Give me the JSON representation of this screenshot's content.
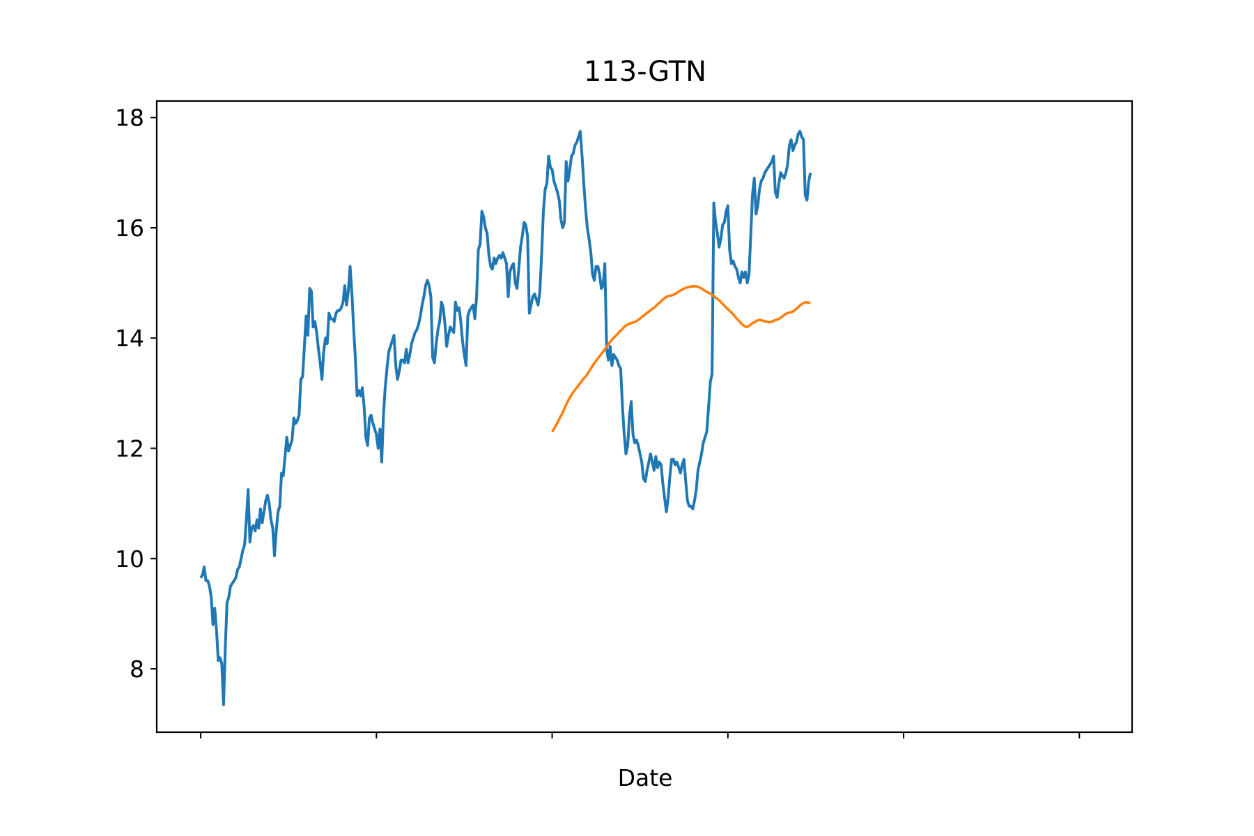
{
  "chart_data": {
    "type": "line",
    "title": "113-GTN",
    "xlabel": "Date",
    "ylabel": "",
    "ylim": [
      6.85,
      18.3
    ],
    "xlim": [
      -25,
      530
    ],
    "grid": false,
    "legend": "none",
    "x_tick_labels": [
      "",
      "",
      "",
      "",
      "",
      ""
    ],
    "y_ticks": [
      8,
      10,
      12,
      14,
      16,
      18
    ],
    "y_tick_labels": [
      "8",
      "10",
      "12",
      "14",
      "16",
      "18"
    ],
    "series": [
      {
        "color": "#1f77b4",
        "values": [
          9.65,
          9.7,
          9.85,
          9.6,
          9.6,
          9.5,
          9.3,
          8.8,
          9.1,
          8.7,
          8.15,
          8.2,
          8.1,
          7.35,
          8.4,
          9.2,
          9.3,
          9.5,
          9.55,
          9.6,
          9.65,
          9.8,
          9.85,
          10.0,
          10.15,
          10.25,
          10.7,
          11.25,
          10.3,
          10.55,
          10.6,
          10.5,
          10.7,
          10.55,
          10.9,
          10.65,
          10.85,
          11.05,
          11.15,
          11.0,
          10.7,
          10.55,
          10.05,
          10.5,
          10.85,
          10.95,
          11.55,
          11.5,
          11.85,
          12.2,
          11.95,
          12.05,
          12.15,
          12.55,
          12.45,
          12.5,
          12.6,
          13.25,
          13.3,
          13.85,
          14.4,
          14.05,
          14.9,
          14.85,
          14.2,
          14.3,
          14.1,
          13.8,
          13.55,
          13.25,
          13.75,
          14.0,
          13.9,
          14.45,
          14.35,
          14.35,
          14.3,
          14.45,
          14.5,
          14.5,
          14.55,
          14.65,
          14.95,
          14.6,
          14.85,
          15.3,
          14.85,
          14.2,
          13.65,
          12.95,
          13.05,
          12.95,
          13.1,
          12.75,
          12.2,
          12.05,
          12.55,
          12.6,
          12.45,
          12.35,
          12.25,
          12.0,
          12.35,
          11.75,
          12.6,
          13.1,
          13.45,
          13.75,
          13.85,
          13.95,
          14.05,
          13.5,
          13.25,
          13.4,
          13.6,
          13.6,
          13.55,
          13.8,
          13.55,
          13.7,
          13.9,
          14.0,
          14.1,
          14.15,
          14.25,
          14.4,
          14.6,
          14.75,
          14.95,
          15.05,
          14.95,
          14.75,
          13.65,
          13.55,
          13.9,
          14.15,
          14.3,
          14.65,
          14.55,
          14.25,
          13.85,
          14.05,
          14.2,
          14.15,
          14.1,
          14.65,
          14.5,
          14.55,
          14.3,
          13.95,
          13.7,
          13.5,
          14.4,
          14.5,
          14.55,
          14.6,
          14.35,
          14.75,
          15.6,
          15.7,
          16.3,
          16.2,
          16.0,
          15.9,
          15.5,
          15.3,
          15.25,
          15.45,
          15.35,
          15.45,
          15.5,
          15.45,
          15.55,
          15.45,
          15.35,
          14.75,
          15.2,
          15.3,
          15.35,
          15.0,
          14.9,
          15.25,
          15.65,
          15.85,
          16.1,
          16.05,
          15.85,
          14.45,
          14.6,
          14.75,
          14.8,
          14.7,
          14.6,
          14.85,
          15.5,
          16.3,
          16.7,
          16.8,
          17.3,
          17.1,
          17.05,
          16.85,
          16.75,
          16.65,
          16.5,
          16.15,
          16.0,
          16.1,
          17.2,
          16.85,
          17.05,
          17.3,
          17.35,
          17.5,
          17.55,
          17.65,
          17.75,
          17.3,
          16.8,
          16.35,
          16.0,
          15.8,
          15.55,
          15.15,
          15.05,
          15.3,
          15.3,
          15.15,
          14.9,
          14.95,
          15.35,
          13.8,
          13.6,
          13.85,
          13.5,
          13.7,
          13.65,
          13.6,
          13.5,
          13.45,
          12.75,
          12.25,
          11.9,
          12.05,
          12.6,
          12.85,
          12.25,
          12.1,
          12.15,
          12.05,
          11.9,
          11.75,
          11.45,
          11.4,
          11.6,
          11.75,
          11.9,
          11.75,
          11.6,
          11.85,
          11.65,
          11.75,
          11.7,
          11.35,
          11.1,
          10.85,
          11.1,
          11.5,
          11.8,
          11.8,
          11.7,
          11.75,
          11.65,
          11.55,
          11.7,
          11.8,
          11.4,
          11.05,
          10.95,
          10.95,
          10.9,
          11.05,
          11.25,
          11.6,
          11.75,
          11.9,
          12.1,
          12.2,
          12.3,
          12.75,
          13.2,
          13.35,
          16.45,
          16.1,
          15.9,
          15.65,
          15.8,
          16.05,
          16.1,
          16.3,
          16.4,
          15.6,
          15.35,
          15.4,
          15.3,
          15.25,
          15.1,
          15.0,
          15.2,
          15.1,
          15.2,
          15.0,
          15.15,
          15.85,
          16.6,
          16.9,
          16.25,
          16.4,
          16.7,
          16.85,
          16.9,
          17.0,
          17.05,
          17.1,
          17.15,
          17.2,
          17.3,
          16.65,
          16.55,
          16.8,
          17.0,
          16.95,
          16.9,
          17.0,
          17.15,
          17.5,
          17.6,
          17.4,
          17.5,
          17.55,
          17.7,
          17.75,
          17.65,
          17.6,
          16.6,
          16.5,
          16.85,
          17.0
        ]
      },
      {
        "color": "#ff7f0e",
        "values": [
          12.3,
          12.36,
          12.43,
          12.5,
          12.58,
          12.65,
          12.74,
          12.82,
          12.9,
          12.96,
          13.02,
          13.07,
          13.12,
          13.17,
          13.22,
          13.27,
          13.31,
          13.37,
          13.43,
          13.49,
          13.55,
          13.6,
          13.65,
          13.7,
          13.75,
          13.8,
          13.86,
          13.91,
          13.96,
          14.0,
          14.04,
          14.08,
          14.12,
          14.16,
          14.2,
          14.23,
          14.25,
          14.27,
          14.28,
          14.29,
          14.31,
          14.34,
          14.37,
          14.4,
          14.43,
          14.46,
          14.49,
          14.52,
          14.55,
          14.58,
          14.62,
          14.65,
          14.69,
          14.72,
          14.75,
          14.76,
          14.77,
          14.78,
          14.8,
          14.82,
          14.85,
          14.87,
          14.89,
          14.91,
          14.92,
          14.93,
          14.94,
          14.94,
          14.94,
          14.93,
          14.91,
          14.89,
          14.86,
          14.84,
          14.82,
          14.8,
          14.77,
          14.74,
          14.71,
          14.68,
          14.64,
          14.6,
          14.56,
          14.52,
          14.49,
          14.45,
          14.41,
          14.36,
          14.32,
          14.28,
          14.24,
          14.21,
          14.2,
          14.22,
          14.25,
          14.28,
          14.3,
          14.32,
          14.33,
          14.32,
          14.31,
          14.3,
          14.29,
          14.29,
          14.3,
          14.32,
          14.33,
          14.35,
          14.37,
          14.4,
          14.43,
          14.45,
          14.46,
          14.47,
          14.49,
          14.52,
          14.55,
          14.59,
          14.62,
          14.64,
          14.65,
          14.64,
          14.64
        ]
      }
    ]
  }
}
